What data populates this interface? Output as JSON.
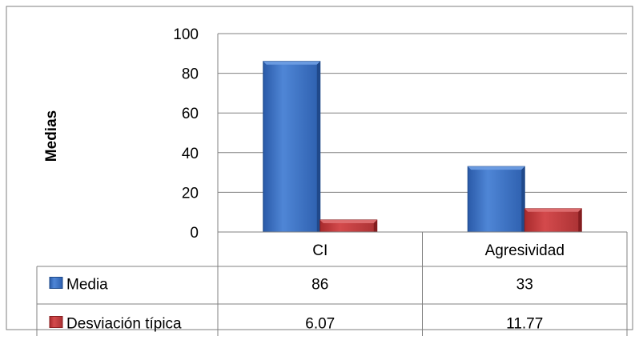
{
  "chart_data": {
    "type": "bar",
    "categories": [
      "CI",
      "Agresividad"
    ],
    "series": [
      {
        "name": "Media",
        "values": [
          86,
          33
        ],
        "color": "#3a6fc4"
      },
      {
        "name": "Desviación típica",
        "values": [
          6.07,
          11.77
        ],
        "color": "#c0393b"
      }
    ],
    "table": [
      {
        "label": "Media",
        "values": [
          "86",
          "33"
        ]
      },
      {
        "label": "Desviación típica",
        "values": [
          "6.07",
          "11.77"
        ]
      }
    ],
    "ylabel": "Medias",
    "ylim": [
      0,
      100
    ],
    "yticks": [
      0,
      20,
      40,
      60,
      80,
      100
    ],
    "grid": true,
    "legend": "data-table"
  }
}
